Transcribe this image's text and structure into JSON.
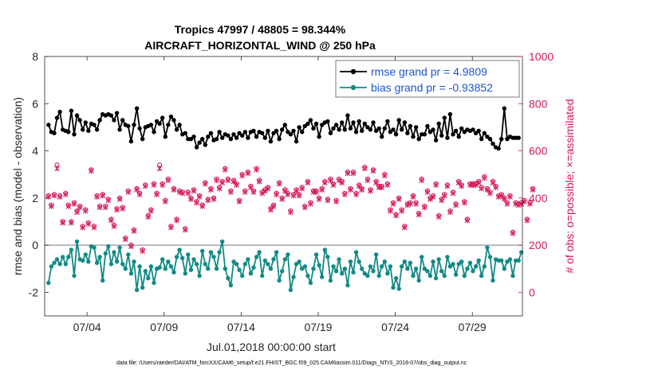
{
  "chart_data": {
    "type": "line",
    "title_line1": "Tropics 47997 / 48805 = 98.344%",
    "title_line2": "AIRCRAFT_HORIZONTAL_WIND @ 250 hPa",
    "xlabel": "Jul.01,2018 00:00:00 start",
    "ylabel_left": "rmse and bias (model - observation)",
    "ylabel_right": "# of obs: o=possible; ×=assimilated",
    "footnote": "data file: /Users/raeder/DAI/ATM_forcXX/CAM6_setup/f.e21.FHIST_BGC.f09_025.CAM6assim.011/Diags_NTrS_2018-07/obs_diag_output.nc",
    "xlim": [
      0.75,
      31.75
    ],
    "ylim_left": [
      -3,
      8
    ],
    "ylim_right": [
      -100,
      1000
    ],
    "x_ticks": [
      3.5,
      8.5,
      13.5,
      18.5,
      23.5,
      28.5
    ],
    "x_tick_labels": [
      "07/04",
      "07/09",
      "07/14",
      "07/19",
      "07/24",
      "07/29"
    ],
    "y_ticks_left": [
      -2,
      0,
      2,
      4,
      6,
      8
    ],
    "y_tick_labels_left": [
      "-2",
      "0",
      "2",
      "4",
      "6",
      "8"
    ],
    "y_ticks_right": [
      0,
      200,
      400,
      600,
      800,
      1000
    ],
    "y_tick_labels_right": [
      "0",
      "200",
      "400",
      "600",
      "800",
      "1000"
    ],
    "zero_line": 0,
    "legend_position": "top-right",
    "colors": {
      "rmse": "#000000",
      "bias": "#138a86",
      "obs": "#d6185a",
      "legend_text": "#1a55d8",
      "zero_line": "#a6a6a6"
    },
    "series": [
      {
        "name": "rmse grand pr = 4.9809",
        "color": "#000000",
        "values": [
          5.1,
          4.8,
          4.75,
          5.4,
          5.65,
          4.9,
          4.85,
          4.8,
          5.7,
          4.7,
          5.5,
          5.3,
          4.9,
          5.2,
          4.85,
          5.15,
          5.1,
          4.9,
          5.3,
          5.55,
          5.5,
          5.55,
          5.5,
          5.3,
          5.6,
          4.9,
          5.3,
          5.1,
          5.05,
          4.4,
          5.1,
          5.8,
          4.95,
          4.5,
          5.0,
          5.05,
          5.1,
          4.8,
          5.25,
          5.15,
          5.4,
          4.6,
          5.1,
          5.45,
          5.3,
          4.9,
          5.1,
          4.7,
          4.75,
          4.5,
          4.5,
          4.6,
          4.15,
          4.35,
          4.5,
          4.25,
          4.6,
          4.75,
          4.45,
          4.5,
          4.8,
          4.55,
          4.7,
          4.65,
          4.5,
          4.7,
          4.55,
          4.75,
          4.65,
          4.8,
          4.55,
          4.8,
          4.85,
          4.6,
          4.8,
          4.75,
          4.55,
          4.85,
          4.4,
          4.75,
          4.85,
          4.5,
          4.9,
          5.1,
          4.8,
          4.7,
          4.85,
          4.4,
          5.0,
          4.8,
          5.05,
          5.15,
          5.3,
          4.95,
          5.15,
          4.6,
          5.1,
          5.2,
          5.25,
          4.75,
          4.95,
          5.1,
          4.9,
          5.2,
          4.9,
          5.5,
          4.95,
          5.2,
          4.8,
          5.25,
          4.85,
          5.15,
          5.0,
          4.9,
          5.2,
          4.85,
          4.95,
          4.6,
          4.95,
          5.25,
          4.8,
          4.9,
          4.7,
          5.3,
          4.9,
          5.2,
          4.75,
          5.05,
          4.6,
          5.0,
          4.5,
          4.7,
          4.7,
          5.05,
          4.8,
          4.9,
          4.45,
          5.15,
          4.65,
          5.4,
          4.55,
          5.55,
          4.7,
          4.85,
          4.6,
          4.95,
          4.8,
          4.9,
          4.85,
          4.9,
          4.75,
          4.85,
          4.5,
          4.75,
          4.6,
          4.5,
          4.3,
          4.15,
          4.1,
          4.5,
          5.8,
          4.5,
          4.6,
          4.55,
          4.55,
          4.55
        ]
      },
      {
        "name": "bias grand pr = -0.93852",
        "color": "#138a86",
        "values": [
          -1.6,
          -0.9,
          -0.75,
          -0.6,
          -0.8,
          -0.5,
          -0.8,
          -0.5,
          -0.2,
          -1.3,
          0.15,
          -0.6,
          -0.65,
          -0.4,
          -0.7,
          -0.05,
          -0.1,
          -0.75,
          -0.5,
          -1.5,
          -0.35,
          -0.05,
          -0.8,
          -0.3,
          -0.7,
          -0.1,
          -0.8,
          -1.0,
          -0.4,
          -1.2,
          -0.7,
          -1.9,
          -0.9,
          -1.8,
          -1.1,
          -1.4,
          -0.9,
          -1.6,
          -1.0,
          -0.95,
          -0.6,
          -1.0,
          -0.7,
          -0.9,
          -1.15,
          -0.5,
          -0.2,
          -0.55,
          -1.2,
          -0.4,
          -1.05,
          -0.6,
          -0.8,
          -1.3,
          -0.25,
          -0.8,
          -1.0,
          -0.3,
          -0.5,
          -1.0,
          -0.3,
          0.15,
          -1.0,
          -1.4,
          -1.7,
          -0.7,
          -0.8,
          -1.05,
          -1.3,
          -0.8,
          -0.6,
          -1.2,
          -0.95,
          -0.5,
          -0.3,
          -1.3,
          -0.65,
          -0.8,
          -1.0,
          -0.6,
          -0.3,
          -1.5,
          -1.1,
          -0.6,
          -0.4,
          -1.9,
          -1.35,
          -0.8,
          -0.7,
          -1.0,
          -0.9,
          -1.3,
          -1.6,
          -1.0,
          -0.4,
          -0.85,
          -1.35,
          -0.2,
          -0.5,
          -1.5,
          -0.9,
          -1.1,
          -0.6,
          -1.2,
          -1.0,
          -1.7,
          -0.7,
          -1.15,
          -0.3,
          -0.7,
          -1.0,
          -1.2,
          -1.3,
          -0.9,
          -1.1,
          -0.4,
          -1.3,
          -0.9,
          -0.7,
          -1.2,
          -0.9,
          -1.8,
          -1.4,
          -1.85,
          -0.9,
          -0.7,
          -1.0,
          -0.75,
          -1.3,
          -1.0,
          -1.5,
          -0.5,
          -1.0,
          -1.1,
          -1.3,
          -0.7,
          -1.4,
          -0.6,
          -1.1,
          -1.3,
          -0.5,
          -0.9,
          -0.8,
          -1.25,
          -0.8,
          -0.7,
          -1.3,
          -1.0,
          -0.75,
          -1.1,
          -0.9,
          -0.65,
          -1.3,
          -0.9,
          -0.1,
          -0.5,
          -1.5,
          -0.6,
          -0.65,
          -0.65,
          -1.0,
          -0.7,
          -0.6,
          -1.3,
          -0.65,
          -0.65,
          -0.3
        ]
      },
      {
        "name": "obs possible",
        "color": "#d6185a",
        "values": [
          410,
          370,
          415,
          540,
          410,
          300,
          420,
          370,
          300,
          380,
          345,
          365,
          280,
          350,
          295,
          520,
          280,
          410,
          365,
          415,
          365,
          395,
          310,
          285,
          355,
          400,
          360,
          230,
          430,
          200,
          265,
          440,
          420,
          180,
          455,
          325,
          350,
          460,
          420,
          540,
          460,
          390,
          480,
          280,
          440,
          310,
          430,
          425,
          270,
          425,
          400,
          435,
          385,
          410,
          370,
          465,
          395,
          440,
          400,
          480,
          445,
          470,
          525,
          480,
          430,
          475,
          460,
          390,
          500,
          430,
          510,
          450,
          430,
          525,
          475,
          425,
          435,
          445,
          355,
          370,
          420,
          465,
          400,
          435,
          420,
          345,
          415,
          435,
          415,
          445,
          365,
          470,
          380,
          430,
          430,
          400,
          440,
          470,
          395,
          480,
          460,
          390,
          480,
          470,
          420,
          510,
          440,
          510,
          420,
          455,
          440,
          530,
          480,
          435,
          520,
          470,
          450,
          450,
          500,
          460,
          350,
          380,
          330,
          400,
          350,
          280,
          375,
          380,
          410,
          380,
          335,
          480,
          365,
          430,
          400,
          410,
          460,
          325,
          395,
          415,
          455,
          345,
          425,
          375,
          470,
          455,
          385,
          310,
          460,
          460,
          460,
          470,
          445,
          490,
          440,
          425,
          470,
          450,
          410,
          415,
          400,
          380,
          410,
          255,
          380,
          375,
          380,
          390,
          310,
          380,
          440
        ]
      },
      {
        "name": "obs assimilated",
        "color": "#d6185a",
        "values": [
          405,
          365,
          410,
          525,
          405,
          295,
          415,
          365,
          295,
          375,
          340,
          360,
          275,
          345,
          290,
          515,
          275,
          405,
          360,
          410,
          360,
          390,
          305,
          280,
          350,
          395,
          355,
          225,
          425,
          195,
          260,
          435,
          415,
          175,
          450,
          320,
          345,
          455,
          415,
          525,
          455,
          385,
          475,
          275,
          435,
          305,
          425,
          420,
          265,
          420,
          395,
          430,
          380,
          405,
          365,
          460,
          390,
          435,
          395,
          475,
          440,
          465,
          520,
          475,
          425,
          470,
          455,
          385,
          495,
          425,
          505,
          445,
          425,
          520,
          470,
          420,
          430,
          440,
          350,
          365,
          415,
          460,
          395,
          430,
          415,
          340,
          410,
          430,
          410,
          440,
          360,
          465,
          375,
          425,
          425,
          395,
          435,
          465,
          390,
          475,
          455,
          385,
          475,
          465,
          415,
          505,
          435,
          505,
          415,
          450,
          435,
          525,
          475,
          430,
          515,
          465,
          445,
          445,
          495,
          455,
          345,
          375,
          325,
          395,
          345,
          275,
          370,
          375,
          405,
          375,
          330,
          475,
          360,
          425,
          395,
          405,
          455,
          320,
          390,
          410,
          450,
          340,
          420,
          370,
          465,
          450,
          380,
          305,
          455,
          455,
          455,
          465,
          440,
          485,
          435,
          420,
          465,
          445,
          405,
          410,
          395,
          375,
          405,
          250,
          375,
          370,
          375,
          385,
          305,
          375,
          435
        ]
      }
    ]
  }
}
